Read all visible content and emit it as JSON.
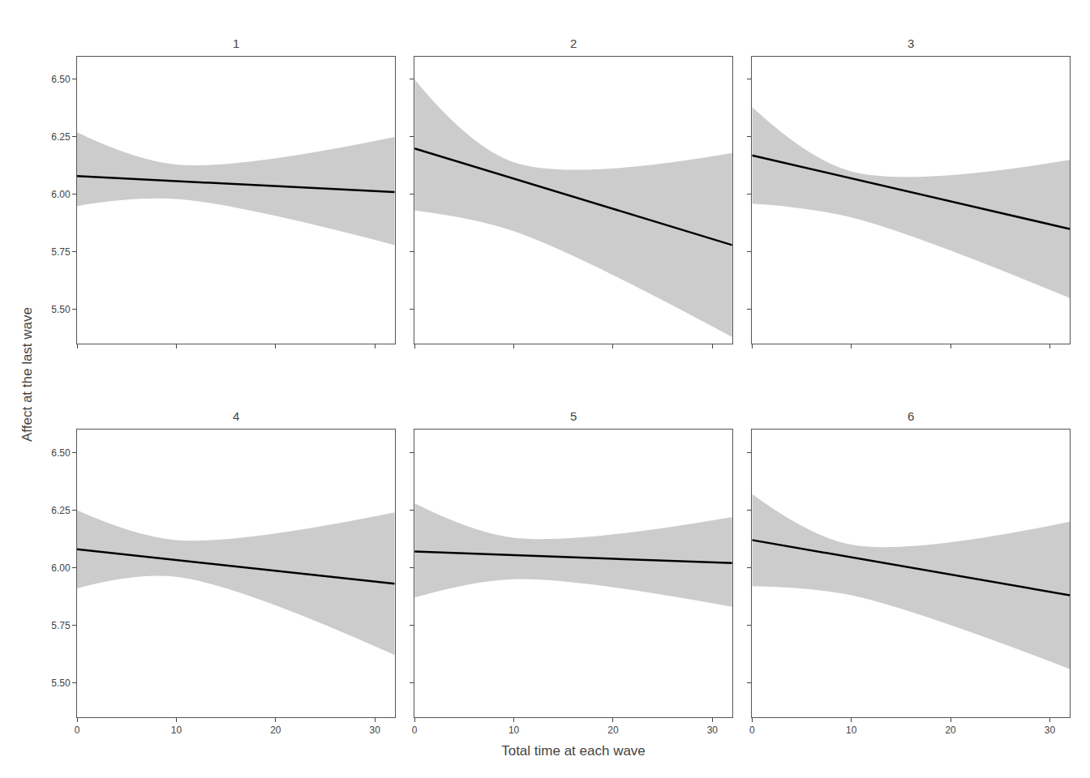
{
  "chart_data": {
    "type": "line",
    "xlabel": "Total time at each wave",
    "ylabel": "Affect at the last wave",
    "xlim": [
      0,
      32
    ],
    "ylim": [
      5.35,
      6.6
    ],
    "xticks": [
      0,
      10,
      20,
      30
    ],
    "yticks": [
      {
        "value": 5.5,
        "label": "5.50"
      },
      {
        "value": 5.75,
        "label": "5.75"
      },
      {
        "value": 6.0,
        "label": "6.00"
      },
      {
        "value": 6.25,
        "label": "6.25"
      },
      {
        "value": 6.5,
        "label": "6.50"
      }
    ],
    "grid": false,
    "panels": [
      {
        "title": "1",
        "tick_labels": "y",
        "series": [
          {
            "type": "area",
            "color": "#cccccc",
            "x": [
              0,
              10,
              32
            ],
            "upper": [
              6.27,
              6.13,
              6.25
            ],
            "lower": [
              5.95,
              5.98,
              5.78
            ]
          },
          {
            "type": "line",
            "color": "#000000",
            "x": [
              0,
              32
            ],
            "values": [
              6.08,
              6.01
            ]
          }
        ]
      },
      {
        "title": "2",
        "tick_labels": false,
        "series": [
          {
            "type": "area",
            "color": "#cccccc",
            "x": [
              0,
              10,
              32
            ],
            "upper": [
              6.5,
              6.14,
              6.18
            ],
            "lower": [
              5.93,
              5.84,
              5.38
            ]
          },
          {
            "type": "line",
            "color": "#000000",
            "x": [
              0,
              32
            ],
            "values": [
              6.2,
              5.78
            ]
          }
        ]
      },
      {
        "title": "3",
        "tick_labels": false,
        "series": [
          {
            "type": "area",
            "color": "#cccccc",
            "x": [
              0,
              10,
              32
            ],
            "upper": [
              6.38,
              6.1,
              6.15
            ],
            "lower": [
              5.96,
              5.9,
              5.55
            ]
          },
          {
            "type": "line",
            "color": "#000000",
            "x": [
              0,
              32
            ],
            "values": [
              6.17,
              5.85
            ]
          }
        ]
      },
      {
        "title": "4",
        "tick_labels": true,
        "series": [
          {
            "type": "area",
            "color": "#cccccc",
            "x": [
              0,
              10,
              32
            ],
            "upper": [
              6.25,
              6.12,
              6.24
            ],
            "lower": [
              5.91,
              5.96,
              5.62
            ]
          },
          {
            "type": "line",
            "color": "#000000",
            "x": [
              0,
              32
            ],
            "values": [
              6.08,
              5.93
            ]
          }
        ]
      },
      {
        "title": "5",
        "tick_labels": "x",
        "series": [
          {
            "type": "area",
            "color": "#cccccc",
            "x": [
              0,
              10,
              32
            ],
            "upper": [
              6.28,
              6.13,
              6.22
            ],
            "lower": [
              5.87,
              5.95,
              5.83
            ]
          },
          {
            "type": "line",
            "color": "#000000",
            "x": [
              0,
              32
            ],
            "values": [
              6.07,
              6.02
            ]
          }
        ]
      },
      {
        "title": "6",
        "tick_labels": "x",
        "series": [
          {
            "type": "area",
            "color": "#cccccc",
            "x": [
              0,
              10,
              32
            ],
            "upper": [
              6.32,
              6.1,
              6.2
            ],
            "lower": [
              5.92,
              5.88,
              5.56
            ]
          },
          {
            "type": "line",
            "color": "#000000",
            "x": [
              0,
              32
            ],
            "values": [
              6.12,
              5.88
            ]
          }
        ]
      }
    ]
  }
}
